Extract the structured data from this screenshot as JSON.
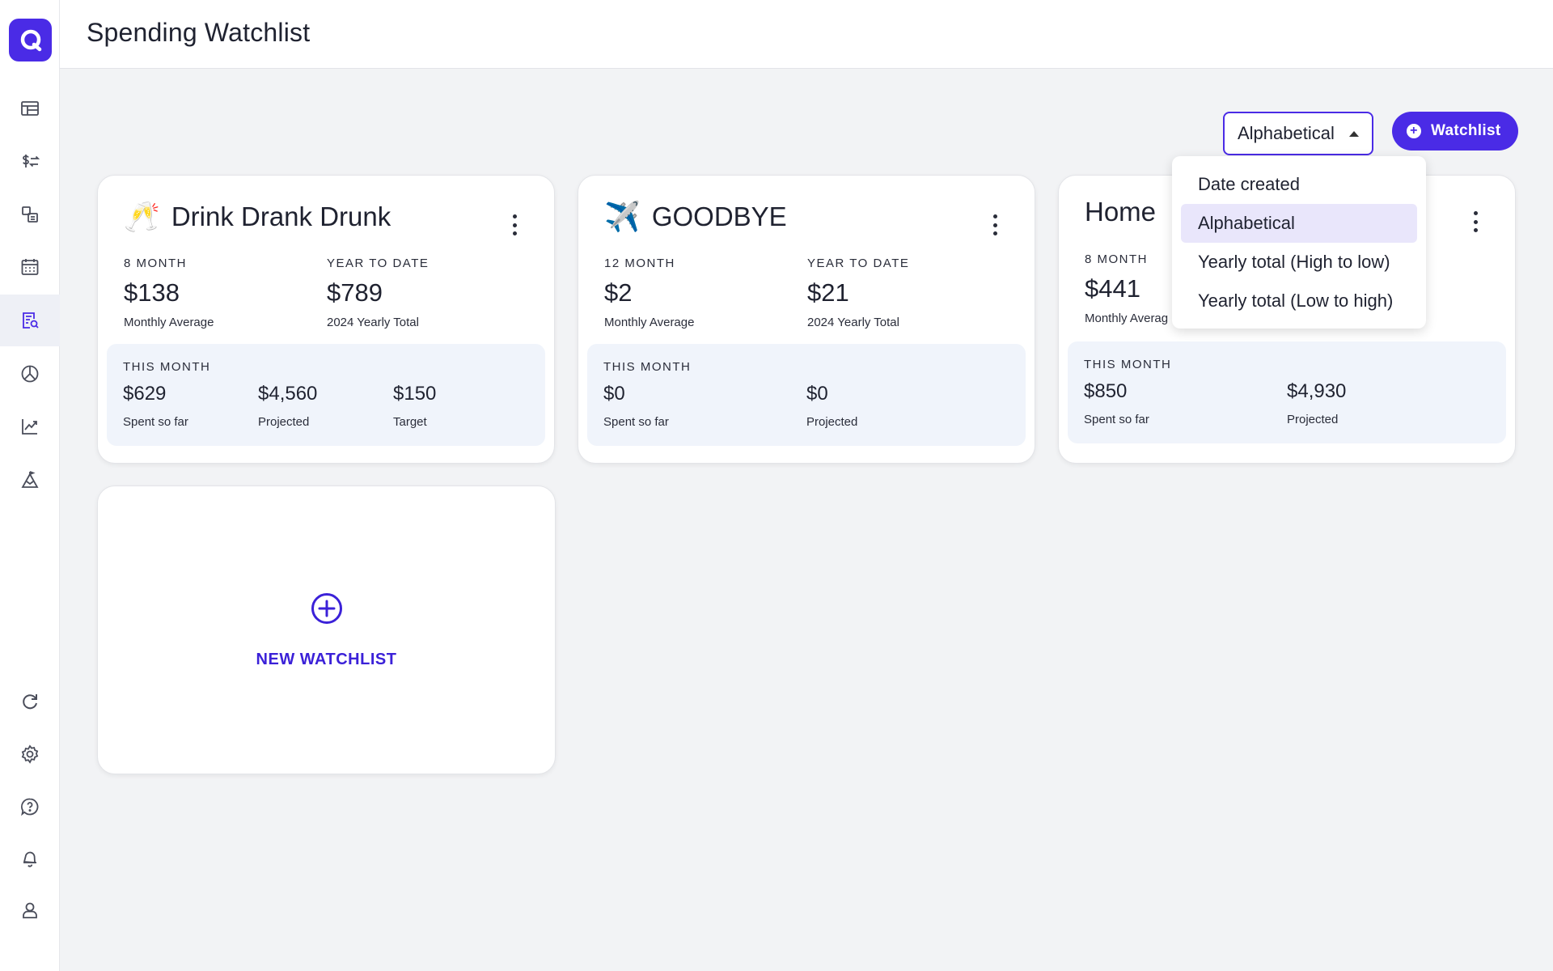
{
  "header": {
    "title": "Spending Watchlist"
  },
  "controls": {
    "sort_value": "Alphabetical",
    "add_button_label": "Watchlist"
  },
  "sort_menu": {
    "options": [
      "Date created",
      "Alphabetical",
      "Yearly total (High to low)",
      "Yearly total (Low to high)"
    ],
    "selected": "Alphabetical"
  },
  "sidebar": {
    "items": [
      "dashboard-icon",
      "transactions-icon",
      "categories-icon",
      "calendar-icon",
      "watchlist-icon",
      "budget-icon",
      "investments-icon",
      "goals-icon",
      "refresh-icon",
      "settings-icon",
      "help-icon",
      "notifications-icon",
      "profile-icon"
    ],
    "active": "watchlist-icon"
  },
  "cards": [
    {
      "emoji": "🥂",
      "title": "Drink Drank Drunk",
      "avg_label": "8 MONTH",
      "avg_value": "$138",
      "avg_sub": "Monthly Average",
      "ytd_label": "YEAR TO DATE",
      "ytd_value": "$789",
      "ytd_sub": "2024 Yearly Total",
      "month_label": "THIS MONTH",
      "spent_value": "$629",
      "spent_label": "Spent so far",
      "projected_value": "$4,560",
      "projected_label": "Projected",
      "target_value": "$150",
      "target_label": "Target"
    },
    {
      "emoji": "✈️",
      "title": "GOODBYE",
      "avg_label": "12 MONTH",
      "avg_value": "$2",
      "avg_sub": "Monthly Average",
      "ytd_label": "YEAR TO DATE",
      "ytd_value": "$21",
      "ytd_sub": "2024 Yearly Total",
      "month_label": "THIS MONTH",
      "spent_value": "$0",
      "spent_label": "Spent so far",
      "projected_value": "$0",
      "projected_label": "Projected"
    },
    {
      "title": "Home",
      "avg_label": "8 MONTH",
      "avg_value": "$441",
      "avg_sub": "Monthly Averag",
      "month_label": "THIS MONTH",
      "spent_value": "$850",
      "spent_label": "Spent so far",
      "projected_value": "$4,930",
      "projected_label": "Projected"
    }
  ],
  "new_watchlist": {
    "label": "NEW WATCHLIST"
  },
  "colors": {
    "accent": "#4a2be6",
    "menu_selected": "#e9e6fb",
    "month_box": "#f0f4fb"
  }
}
